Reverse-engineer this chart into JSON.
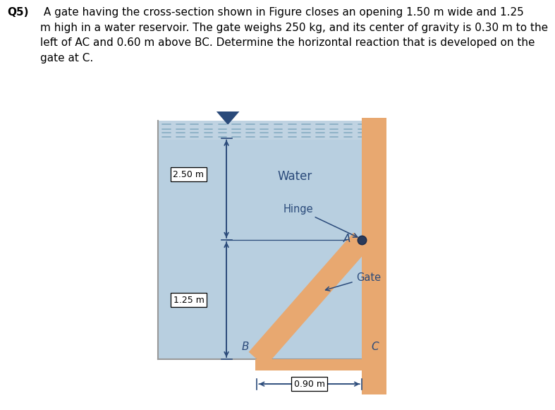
{
  "water_color": "#b8cfe0",
  "water_surf_color": "#c8d8e8",
  "gate_color": "#e8a870",
  "wall_color": "#e8a870",
  "bg_color": "#ffffff",
  "text_color": "#2a4a7a",
  "fig_bg": "#ffffff",
  "question": "Q5) A gate having the cross-section shown in Figure closes an opening 1.50 m wide and 1.25\nm high in a water reservoir. The gate weighs 250 kg, and its center of gravity is 0.30 m to the\nleft of AC and 0.60 m above BC. Determine the horizontal reaction that is developed on the\ngate at C.",
  "label_2_50": "2.50 m",
  "label_1_25": "1.25 m",
  "label_0_90": "0.90 m",
  "label_water": "Water",
  "label_hinge": "Hinge",
  "label_gate": "Gate",
  "label_A": "A",
  "label_B": "B",
  "label_C": "C"
}
